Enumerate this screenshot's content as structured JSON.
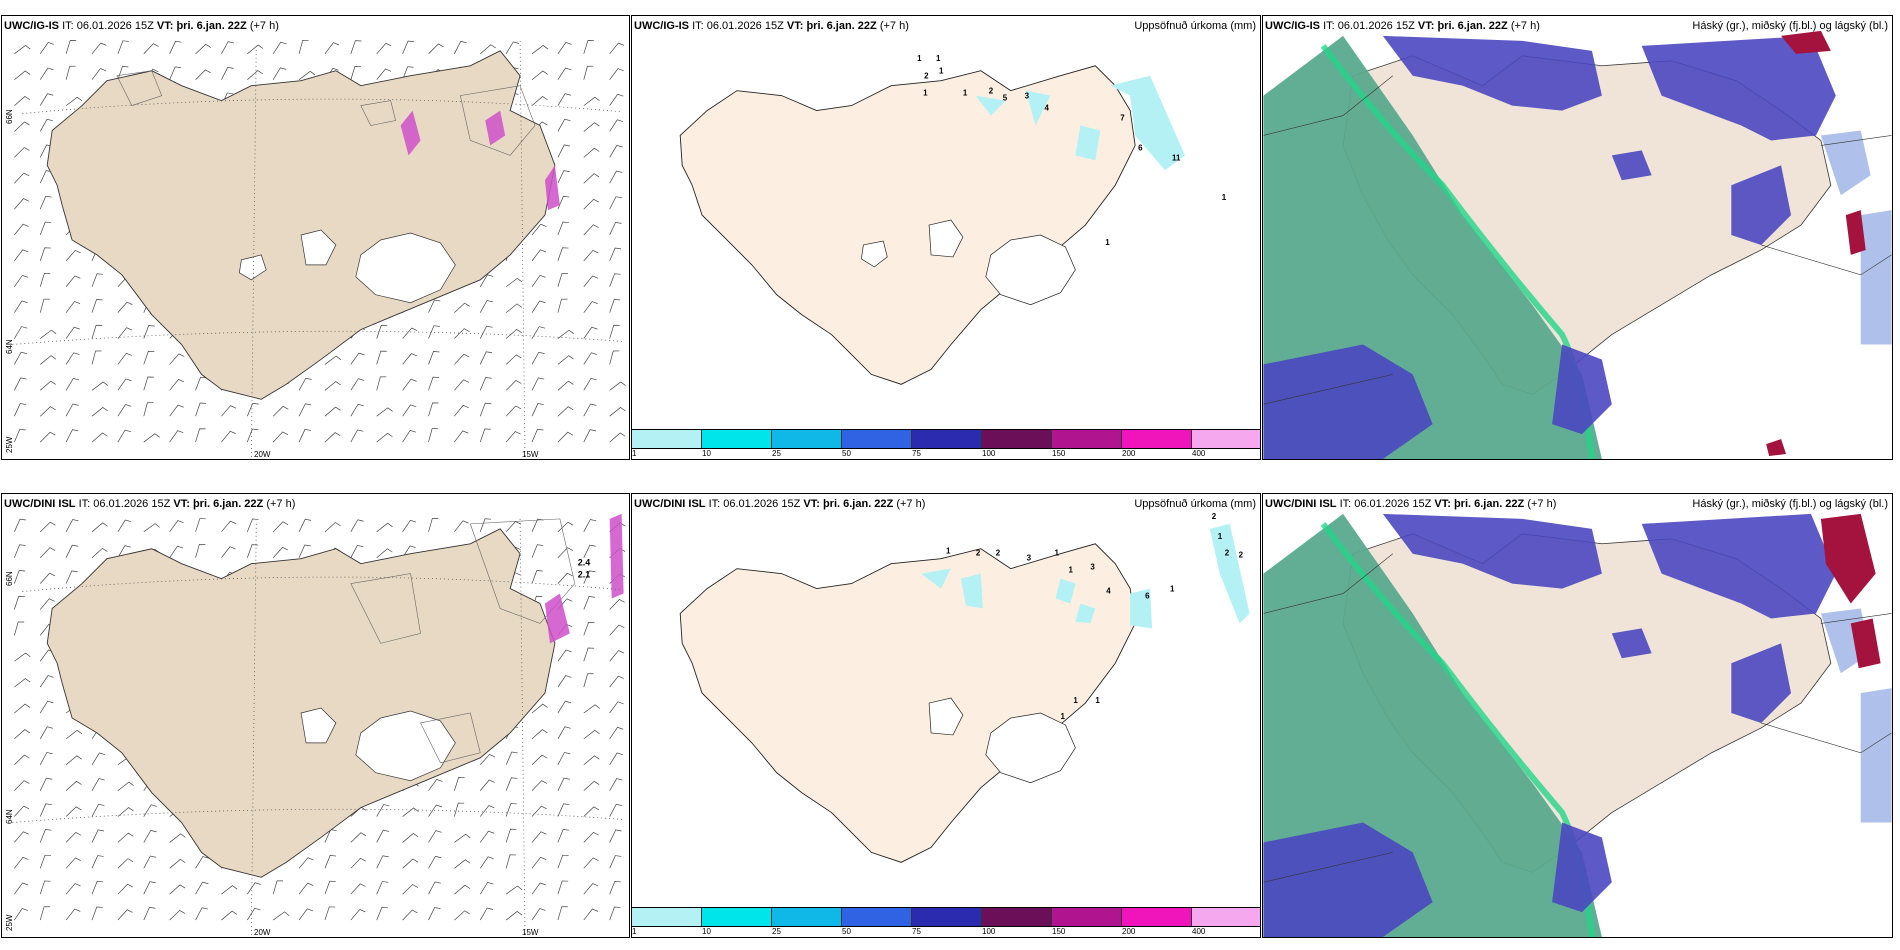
{
  "colors": {
    "land": "#e8d9c4",
    "land_precip": "#fcefe2",
    "glacier": "#ffffff",
    "sea_cloud": "#5aaa8e",
    "cloud_mid": "#4b47c0",
    "cloud_blue": "#6d8ed8",
    "cloud_red": "#a3133d",
    "precip_cyan": "#b3f1f4",
    "pink": "#cf4fc9"
  },
  "rows": [
    {
      "model": "UWC/IG-IS",
      "it_label": "IT:",
      "it_value": "06.01.2026 15Z",
      "vt_label": "VT:",
      "vt_value": "þri. 6.jan. 22Z",
      "lead": "(+7 h)",
      "lat_labels": [
        "66N",
        "64N"
      ],
      "lon_labels": [
        "25W",
        "20W",
        "15W"
      ],
      "precip_numbers": [
        "1",
        "1",
        "2",
        "1",
        "1",
        "1",
        "2",
        "5",
        "3",
        "4",
        "7",
        "6",
        "11",
        "1",
        "1"
      ]
    },
    {
      "model": "UWC/DINI ISL",
      "it_label": "IT:",
      "it_value": "06.01.2026 15Z",
      "vt_label": "VT:",
      "vt_value": "þri. 6.jan. 22Z",
      "lead": "(+7 h)",
      "lat_labels": [
        "66N",
        "64N"
      ],
      "lon_labels": [
        "25W",
        "20W",
        "15W"
      ],
      "extra_values": [
        "2.4",
        "2.1"
      ],
      "precip_numbers": [
        "1",
        "2",
        "2",
        "3",
        "1",
        "1",
        "3",
        "4",
        "6",
        "1",
        "2",
        "1",
        "2",
        "2",
        "1",
        "1",
        "1"
      ]
    }
  ],
  "precip_title": "Uppsöfnuð úrkoma (mm)",
  "cloud_title": "Háský (gr.), miðský (fj.bl.) og lágský (bl.)",
  "colorbar": {
    "labels": [
      "1",
      "10",
      "25",
      "50",
      "75",
      "100",
      "150",
      "200",
      "400"
    ],
    "colors": [
      "#b3f1f4",
      "#00e5ea",
      "#10b8e8",
      "#3063e3",
      "#2b2bb0",
      "#6a0f58",
      "#b0148f",
      "#ef15bb",
      "#f5a8ee"
    ]
  }
}
